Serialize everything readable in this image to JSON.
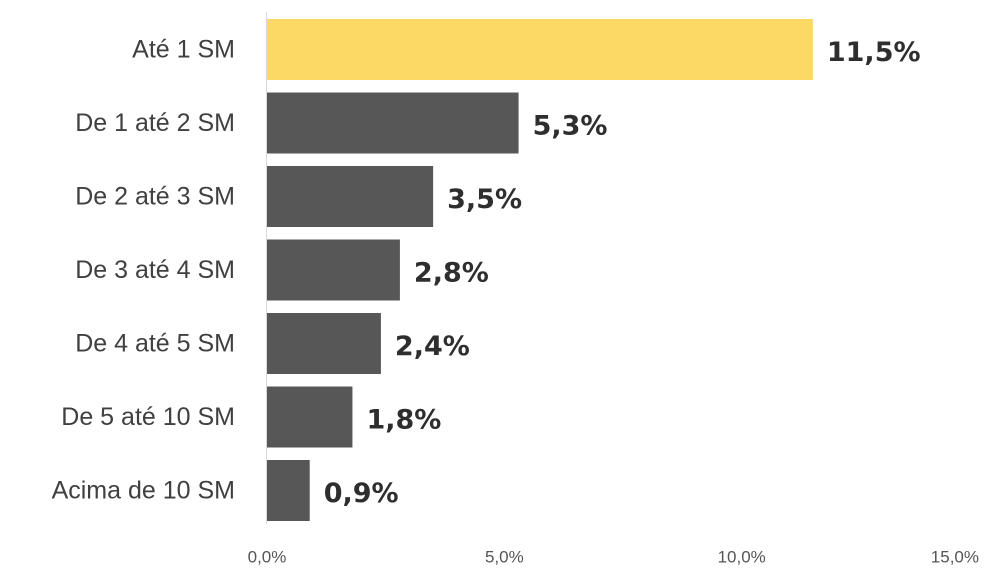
{
  "chart_data": {
    "type": "bar",
    "orientation": "horizontal",
    "categories": [
      "Até 1 SM",
      "De 1 até 2 SM",
      "De 2 até 3 SM",
      "De 3 até 4 SM",
      "De 4 até 5 SM",
      "De 5 até 10 SM",
      "Acima de 10 SM"
    ],
    "values": [
      11.5,
      5.3,
      3.5,
      2.8,
      2.4,
      1.8,
      0.9
    ],
    "value_labels": [
      "11,5%",
      "5,3%",
      "3,5%",
      "2,8%",
      "2,4%",
      "1,8%",
      "0,9%"
    ],
    "x_ticks": [
      0,
      5,
      10,
      15
    ],
    "x_tick_labels": [
      "0,0%",
      "5,0%",
      "10,0%",
      "15,0%"
    ],
    "xlim": [
      0,
      15
    ],
    "title": "",
    "xlabel": "",
    "ylabel": "",
    "grid": false,
    "highlight_index": 0,
    "colors": {
      "highlight": "#FCD865",
      "default": "#575757",
      "axis": "#d9d9d9"
    }
  }
}
